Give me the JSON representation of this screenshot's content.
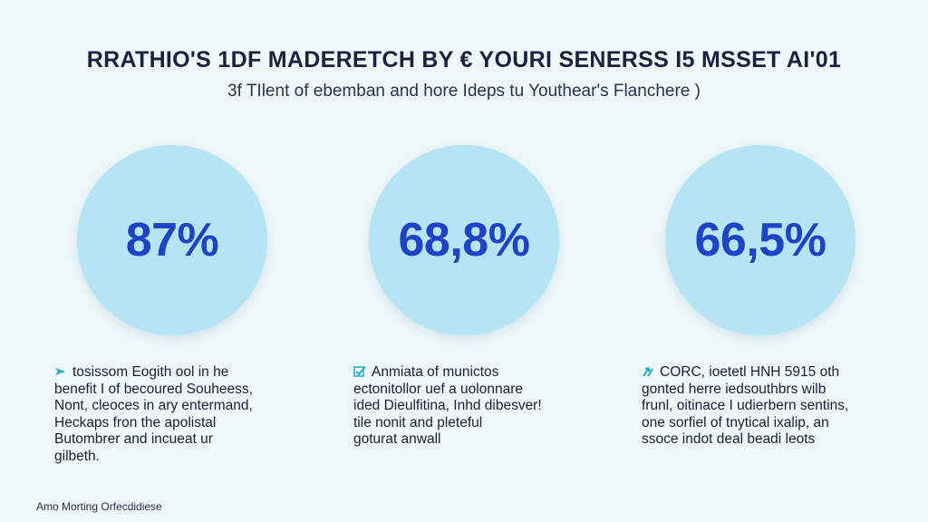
{
  "header": {
    "title": "RRATHIO'S 1DF MADERETCH BY € YOURI SENERSS I5 MSSET AI'01",
    "subtitle": "3f TIlent of ebemban and hore Ideps tu Youthear's Flanchere )"
  },
  "stats": [
    {
      "value": "87%",
      "icon": "bird-arrow-icon",
      "lines": [
        "tosissom Eogith ool in he",
        "benefit I of becoured Souheess,",
        "Nont, cleoces in ary entermand,",
        "Heckaps fron the apolistal",
        "Butombrer and incueat ur",
        "gilbeth."
      ]
    },
    {
      "value": "68,8%",
      "icon": "check-box-icon",
      "lines": [
        "Anmiata of munictos",
        "ectonitollor uef a uolonnare",
        "ided Dieulfitina, Inhd dibesver!",
        "tile nonit and pleteful",
        "goturat anwall"
      ]
    },
    {
      "value": "66,5%",
      "icon": "arrow-up-icon",
      "lines": [
        "CORC, ioetetl HNH 5915 oth",
        "gonted herre iedsouthbrs wilb",
        "frunl, oitinace I udierbern sentins,",
        "one sorfiel of tnytical ixalip, an",
        "ssoce indot deal beadi leots"
      ]
    }
  ],
  "footer": {
    "text": "Amo Morting Orfecdidiese"
  },
  "colors": {
    "background": "#eef7fa",
    "circle": "#b7e4f5",
    "stat_text": "#1d44c4",
    "icon": "#2aa9c9"
  }
}
